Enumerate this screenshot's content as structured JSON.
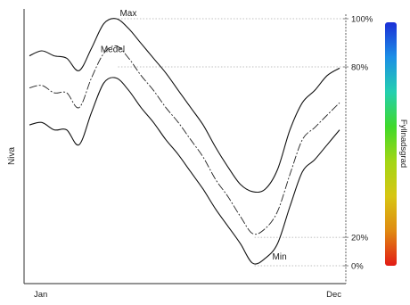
{
  "chart_data": {
    "type": "line",
    "title": "",
    "xlabel": "",
    "ylabel": "Niva",
    "x_tick_labels": [
      "Jan",
      "Dec"
    ],
    "x": [
      0,
      4,
      8,
      12,
      16,
      20,
      24,
      28,
      32,
      36,
      40,
      44,
      48,
      52,
      56,
      60,
      64,
      68,
      72,
      76,
      80,
      84,
      88,
      92,
      96,
      100
    ],
    "ylim": [
      0,
      100
    ],
    "series": [
      {
        "name": "Max",
        "values": [
          85,
          87,
          85,
          84,
          79,
          88,
          98,
          100,
          96,
          90,
          84,
          78,
          71,
          64,
          57,
          48,
          40,
          33,
          30,
          31,
          39,
          55,
          66,
          71,
          77,
          80
        ]
      },
      {
        "name": "Medel",
        "values": [
          72,
          73,
          70,
          70,
          64,
          76,
          86,
          89,
          84,
          77,
          71,
          64,
          58,
          51,
          44,
          35,
          28,
          20,
          13,
          15,
          22,
          37,
          51,
          56,
          61,
          66
        ]
      },
      {
        "name": "Min",
        "values": [
          57,
          58,
          55,
          55,
          49,
          62,
          74,
          76,
          71,
          64,
          58,
          51,
          45,
          38,
          31,
          23,
          16,
          9,
          1,
          3,
          9,
          24,
          38,
          43,
          49,
          55
        ]
      }
    ],
    "reference_lines": [
      {
        "label": "100%",
        "y": 100
      },
      {
        "label": "80%",
        "y": 80.5
      },
      {
        "label": "20%",
        "y": 11.5
      },
      {
        "label": "0%",
        "y": 0
      }
    ],
    "colorbar": {
      "label": "Fyllnadsgrad",
      "colors": [
        "#1b2fd6",
        "#1c8fe6",
        "#24cfb0",
        "#3fd92a",
        "#a3d615",
        "#d7c613",
        "#e08a12",
        "#e21b15"
      ]
    },
    "grid": false,
    "legend": "none"
  }
}
